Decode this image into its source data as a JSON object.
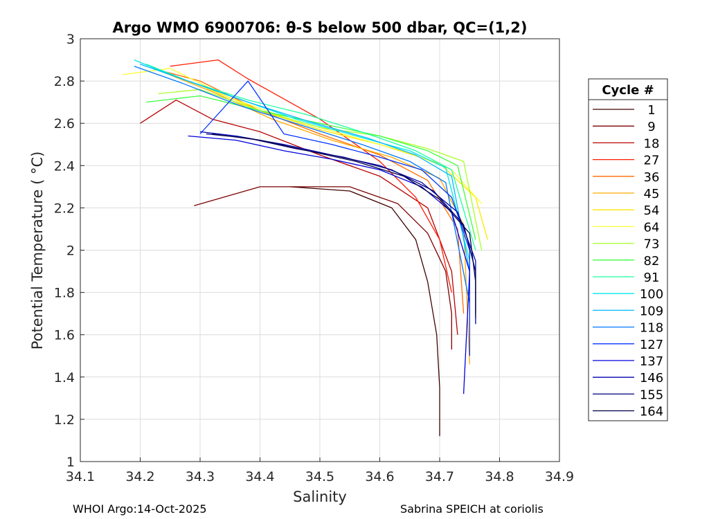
{
  "chart_data": {
    "type": "line",
    "title": "Argo WMO 6900706: θ-S below 500 dbar,  QC=(1,2)",
    "xlabel": "Salinity",
    "ylabel": "Potential Temperature ( °C)",
    "xlim": [
      34.1,
      34.9
    ],
    "ylim": [
      1,
      3
    ],
    "xticks": [
      "34.1",
      "34.2",
      "34.3",
      "34.4",
      "34.5",
      "34.6",
      "34.7",
      "34.8",
      "34.9"
    ],
    "yticks": [
      "1",
      "1.2",
      "1.4",
      "1.6",
      "1.8",
      "2",
      "2.2",
      "2.4",
      "2.6",
      "2.8",
      "3"
    ],
    "grid": true,
    "legend_title": "Cycle #",
    "legend_position": "outside-right",
    "series": [
      {
        "name": "1",
        "color": "#3f0000",
        "x": [
          34.45,
          34.55,
          34.62,
          34.66,
          34.68,
          34.695,
          34.7,
          34.7
        ],
        "y": [
          2.3,
          2.28,
          2.2,
          2.05,
          1.85,
          1.6,
          1.35,
          1.12
        ]
      },
      {
        "name": "9",
        "color": "#7a0000",
        "x": [
          34.29,
          34.4,
          34.55,
          34.63,
          34.68,
          34.71,
          34.72,
          34.72
        ],
        "y": [
          2.21,
          2.3,
          2.3,
          2.22,
          2.08,
          1.9,
          1.7,
          1.53
        ]
      },
      {
        "name": "18",
        "color": "#b80000",
        "x": [
          34.2,
          34.26,
          34.32,
          34.4,
          34.5,
          34.6,
          34.68,
          34.72,
          34.73
        ],
        "y": [
          2.6,
          2.71,
          2.62,
          2.56,
          2.45,
          2.35,
          2.2,
          1.9,
          1.6
        ]
      },
      {
        "name": "27",
        "color": "#ff1a00",
        "x": [
          34.25,
          34.33,
          34.38,
          34.5,
          34.6,
          34.66,
          34.7,
          34.72
        ],
        "y": [
          2.87,
          2.9,
          2.81,
          2.62,
          2.42,
          2.25,
          2.05,
          1.8
        ]
      },
      {
        "name": "36",
        "color": "#ff6a00",
        "x": [
          34.22,
          34.3,
          34.4,
          34.5,
          34.6,
          34.68,
          34.73,
          34.74
        ],
        "y": [
          2.86,
          2.8,
          2.66,
          2.55,
          2.45,
          2.33,
          2.1,
          1.7
        ]
      },
      {
        "name": "45",
        "color": "#ffaa00",
        "x": [
          34.24,
          34.32,
          34.42,
          34.52,
          34.62,
          34.7,
          34.74,
          34.75
        ],
        "y": [
          2.84,
          2.75,
          2.62,
          2.52,
          2.44,
          2.34,
          2.12,
          1.46
        ]
      },
      {
        "name": "54",
        "color": "#ffe600",
        "x": [
          34.22,
          34.3,
          34.4,
          34.5,
          34.6,
          34.7,
          34.76,
          34.78
        ],
        "y": [
          2.86,
          2.78,
          2.66,
          2.57,
          2.5,
          2.41,
          2.25,
          2.05
        ]
      },
      {
        "name": "64",
        "color": "#ffff33",
        "x": [
          34.17,
          34.25,
          34.35,
          34.45,
          34.55,
          34.65,
          34.72,
          34.77
        ],
        "y": [
          2.83,
          2.86,
          2.72,
          2.62,
          2.54,
          2.46,
          2.38,
          2.22
        ]
      },
      {
        "name": "73",
        "color": "#a8ff2a",
        "x": [
          34.23,
          34.3,
          34.4,
          34.5,
          34.6,
          34.68,
          34.74,
          34.77
        ],
        "y": [
          2.74,
          2.76,
          2.66,
          2.58,
          2.54,
          2.48,
          2.42,
          2.0
        ]
      },
      {
        "name": "82",
        "color": "#3dff3d",
        "x": [
          34.21,
          34.3,
          34.4,
          34.5,
          34.6,
          34.68,
          34.73,
          34.76
        ],
        "y": [
          2.7,
          2.73,
          2.66,
          2.6,
          2.54,
          2.47,
          2.4,
          2.05
        ]
      },
      {
        "name": "91",
        "color": "#19ffa0",
        "x": [
          34.21,
          34.28,
          34.38,
          34.48,
          34.58,
          34.66,
          34.72,
          34.76
        ],
        "y": [
          2.88,
          2.8,
          2.71,
          2.64,
          2.55,
          2.47,
          2.38,
          2.0
        ]
      },
      {
        "name": "100",
        "color": "#00e8e8",
        "x": [
          34.19,
          34.26,
          34.36,
          34.46,
          34.56,
          34.65,
          34.71,
          34.75
        ],
        "y": [
          2.9,
          2.82,
          2.72,
          2.62,
          2.54,
          2.47,
          2.39,
          1.95
        ]
      },
      {
        "name": "109",
        "color": "#00b8ff",
        "x": [
          34.2,
          34.28,
          34.38,
          34.48,
          34.58,
          34.66,
          34.72,
          34.75
        ],
        "y": [
          2.88,
          2.8,
          2.7,
          2.61,
          2.53,
          2.45,
          2.35,
          1.9
        ]
      },
      {
        "name": "118",
        "color": "#0077ff",
        "x": [
          34.19,
          34.27,
          34.37,
          34.47,
          34.57,
          34.65,
          34.71,
          34.75
        ],
        "y": [
          2.87,
          2.79,
          2.68,
          2.59,
          2.5,
          2.42,
          2.32,
          1.75
        ]
      },
      {
        "name": "127",
        "color": "#0033ff",
        "x": [
          34.3,
          34.38,
          34.44,
          34.52,
          34.6,
          34.67,
          34.72,
          34.75,
          34.75
        ],
        "y": [
          2.55,
          2.8,
          2.55,
          2.5,
          2.44,
          2.38,
          2.25,
          2.0,
          1.5
        ]
      },
      {
        "name": "137",
        "color": "#0000dd",
        "x": [
          34.28,
          34.36,
          34.44,
          34.52,
          34.6,
          34.67,
          34.72,
          34.75,
          34.74
        ],
        "y": [
          2.54,
          2.52,
          2.47,
          2.43,
          2.38,
          2.3,
          2.18,
          1.9,
          1.32
        ]
      },
      {
        "name": "146",
        "color": "#0000b0",
        "x": [
          34.3,
          34.36,
          34.44,
          34.52,
          34.6,
          34.67,
          34.73,
          34.76,
          34.76
        ],
        "y": [
          2.56,
          2.54,
          2.5,
          2.45,
          2.4,
          2.32,
          2.18,
          1.95,
          1.65
        ]
      },
      {
        "name": "155",
        "color": "#00007a",
        "x": [
          34.31,
          34.38,
          34.46,
          34.54,
          34.62,
          34.69,
          34.74,
          34.76,
          34.76
        ],
        "y": [
          2.55,
          2.53,
          2.48,
          2.44,
          2.38,
          2.28,
          2.12,
          1.9,
          1.7
        ]
      },
      {
        "name": "164",
        "color": "#00004a",
        "x": [
          34.32,
          34.4,
          34.48,
          34.56,
          34.64,
          34.7,
          34.75,
          34.76,
          34.76
        ],
        "y": [
          2.55,
          2.52,
          2.47,
          2.42,
          2.35,
          2.24,
          2.08,
          1.85,
          1.68
        ]
      }
    ]
  },
  "footer": {
    "left": "WHOI Argo:14-Oct-2025",
    "right": "Sabrina SPEICH at coriolis"
  }
}
